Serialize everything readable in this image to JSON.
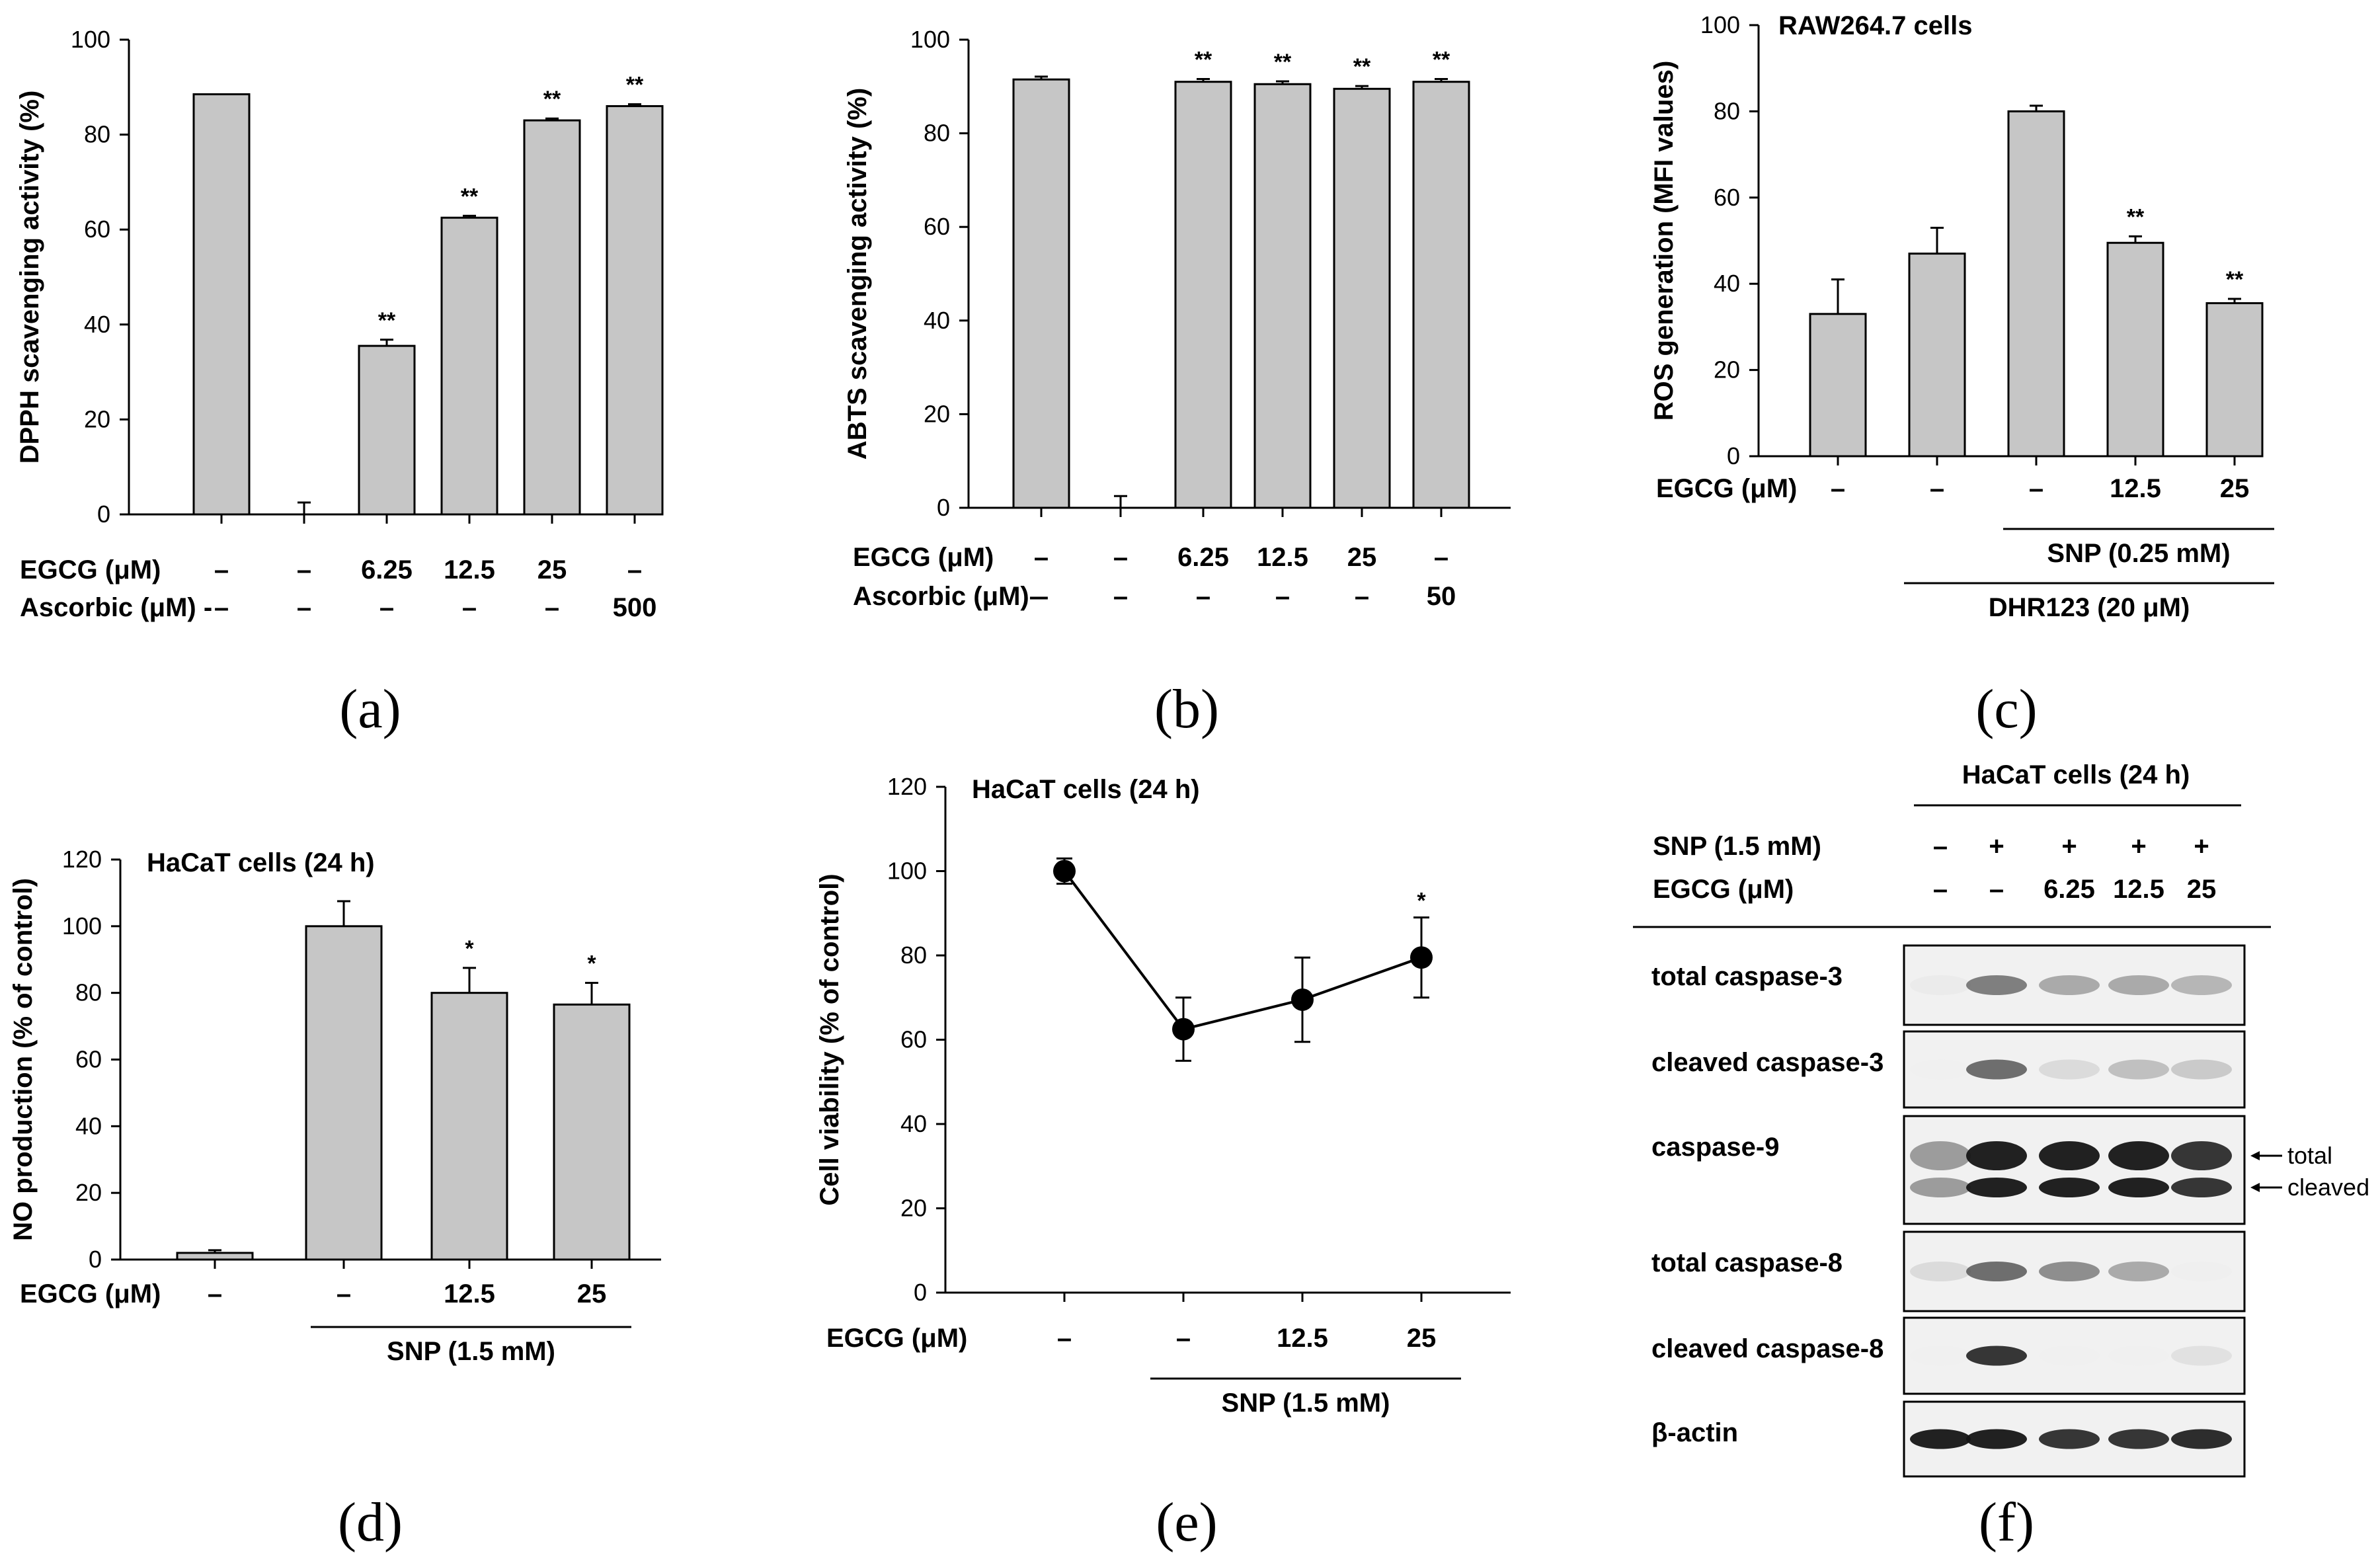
{
  "captions": [
    "(a)",
    "(b)",
    "(c)",
    "(d)",
    "(e)",
    "(f)"
  ],
  "chart_data": [
    {
      "id": "a",
      "type": "bar",
      "title": "",
      "ylabel": "DPPH scavenging activity (%)",
      "ylim": [
        0,
        100
      ],
      "yticks": [
        "0",
        "20",
        "40",
        "60",
        "80",
        "100"
      ],
      "values": [
        88.5,
        0,
        35.5,
        62.5,
        83,
        86
      ],
      "errors": [
        0,
        2.5,
        1.3,
        0.4,
        0.4,
        0.4
      ],
      "stars": [
        "",
        "",
        "**",
        "**",
        "**",
        "**"
      ],
      "rows": [
        {
          "label": "EGCG (μM)",
          "values": [
            "–",
            "–",
            "6.25",
            "12.5",
            "25",
            "–"
          ]
        },
        {
          "label": "Ascorbic (μM) -",
          "values": [
            "–",
            "–",
            "–",
            "–",
            "–",
            "500"
          ]
        }
      ],
      "brackets": []
    },
    {
      "id": "b",
      "type": "bar",
      "title": "",
      "ylabel": "ABTS scavenging activity (%)",
      "ylim": [
        0,
        100
      ],
      "yticks": [
        "0",
        "20",
        "40",
        "60",
        "80",
        "100"
      ],
      "values": [
        91.5,
        0,
        91,
        90.5,
        89.5,
        91
      ],
      "errors": [
        0.6,
        2.5,
        0.6,
        0.6,
        0.6,
        0.6
      ],
      "stars": [
        "",
        "",
        "**",
        "**",
        "**",
        "**"
      ],
      "rows": [
        {
          "label": "EGCG (μM)",
          "values": [
            "–",
            "–",
            "6.25",
            "12.5",
            "25",
            "–"
          ]
        },
        {
          "label": "Ascorbic (μM)–",
          "values": [
            "–",
            "–",
            "–",
            "–",
            "–",
            "50"
          ]
        }
      ],
      "brackets": []
    },
    {
      "id": "c",
      "type": "bar",
      "title": "RAW264.7 cells",
      "ylabel": "ROS generation (MFI values)",
      "ylim": [
        0,
        100
      ],
      "yticks": [
        "0",
        "20",
        "40",
        "60",
        "80",
        "100"
      ],
      "values": [
        33,
        47,
        80,
        49.5,
        35.5
      ],
      "errors": [
        8,
        6,
        1.3,
        1.5,
        1
      ],
      "stars": [
        "",
        "",
        "",
        "**",
        "**"
      ],
      "rows": [
        {
          "label": "EGCG (μM)",
          "values": [
            "–",
            "–",
            "–",
            "12.5",
            "25"
          ]
        }
      ],
      "brackets": [
        {
          "label": "SNP (0.25 mM)",
          "from": 2,
          "to": 4
        },
        {
          "label": "DHR123 (20 μM)",
          "from": 1,
          "to": 4
        }
      ]
    },
    {
      "id": "d",
      "type": "bar",
      "title": "HaCaT cells (24 h)",
      "ylabel": "NO production (% of control)",
      "ylim": [
        0,
        120
      ],
      "yticks": [
        "0",
        "20",
        "40",
        "60",
        "80",
        "100",
        "120"
      ],
      "values": [
        2,
        100,
        80,
        76.5
      ],
      "errors": [
        0.8,
        7.5,
        7.5,
        6.5
      ],
      "stars": [
        "",
        "",
        "*",
        "*"
      ],
      "rows": [
        {
          "label": "EGCG (μM)",
          "values": [
            "–",
            "–",
            "12.5",
            "25"
          ]
        }
      ],
      "brackets": [
        {
          "label": "SNP (1.5 mM)",
          "from": 1,
          "to": 3
        }
      ]
    },
    {
      "id": "e",
      "type": "line",
      "title": "HaCaT cells (24 h)",
      "ylabel": "Cell viability (% of control)",
      "ylim": [
        0,
        120
      ],
      "yticks": [
        "0",
        "20",
        "40",
        "60",
        "80",
        "100",
        "120"
      ],
      "values": [
        100,
        62.5,
        69.5,
        79.5
      ],
      "errors": [
        3,
        7.5,
        10,
        9.5
      ],
      "stars": [
        "",
        "",
        "",
        "*"
      ],
      "rows": [
        {
          "label": "EGCG (μM)",
          "values": [
            "–",
            "–",
            "12.5",
            "25"
          ]
        }
      ],
      "brackets": [
        {
          "label": "SNP (1.5 mM)",
          "from": 1,
          "to": 3
        }
      ]
    },
    {
      "id": "f",
      "type": "western-blot",
      "title": "HaCaT cells (24 h)",
      "treatments": [
        {
          "label": "SNP (1.5 mM)",
          "values": [
            "–",
            "+",
            "+",
            "+",
            "+"
          ]
        },
        {
          "label": "EGCG (μM)",
          "values": [
            "–",
            "–",
            "6.25",
            "12.5",
            "25"
          ]
        }
      ],
      "blots": [
        {
          "label": "total caspase-3",
          "bands": [
            0.15,
            0.7,
            0.55,
            0.55,
            0.5
          ]
        },
        {
          "label": "cleaved caspase-3",
          "bands": [
            0.02,
            0.75,
            0.3,
            0.45,
            0.4
          ]
        },
        {
          "label": "caspase-9",
          "bands": [
            0.6,
            0.95,
            0.95,
            0.95,
            0.9
          ],
          "arrows": [
            "total",
            "cleaved"
          ]
        },
        {
          "label": "total caspase-8",
          "bands": [
            0.3,
            0.75,
            0.65,
            0.55,
            0.05
          ]
        },
        {
          "label": "cleaved caspase-8",
          "bands": [
            0.02,
            0.9,
            0.02,
            0.02,
            0.25
          ]
        },
        {
          "label": "β-actin",
          "bands": [
            0.95,
            0.95,
            0.9,
            0.9,
            0.92
          ]
        }
      ]
    }
  ]
}
